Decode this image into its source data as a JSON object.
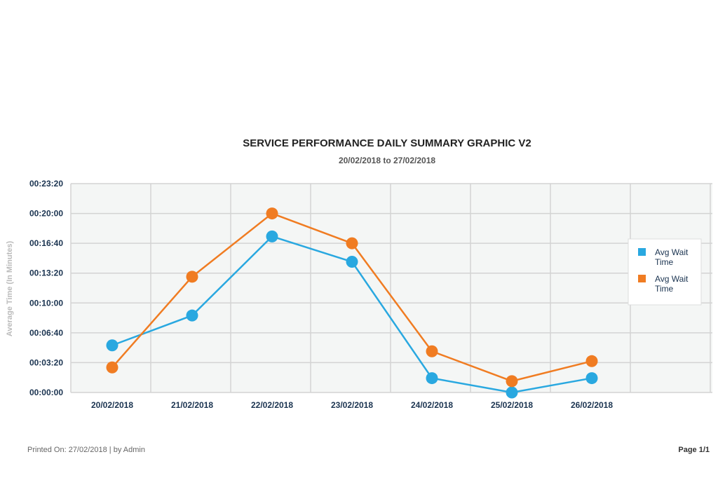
{
  "chart_data": {
    "type": "line",
    "title": "SERVICE PERFORMANCE DAILY SUMMARY GRAPHIC V2",
    "subtitle": "20/02/2018 to 27/02/2018",
    "ylabel": "Average Time (In Minutes)",
    "xlabel": "",
    "categories": [
      "20/02/2018",
      "21/02/2018",
      "22/02/2018",
      "23/02/2018",
      "24/02/2018",
      "25/02/2018",
      "26/02/2018"
    ],
    "y_unit": "seconds",
    "ylim": [
      0,
      1400
    ],
    "y_ticks": [
      0,
      200,
      400,
      600,
      800,
      1000,
      1200,
      1400
    ],
    "y_tick_labels": [
      "00:00:00",
      "00:03:20",
      "00:06:40",
      "00:10:00",
      "00:13:20",
      "00:16:40",
      "00:20:00",
      "00:23:20"
    ],
    "grid": true,
    "legend_position": "right",
    "series": [
      {
        "name": "Avg Wait Time",
        "color": "#29a8e0",
        "values": [
          316,
          516,
          1046,
          876,
          96,
          0,
          96
        ]
      },
      {
        "name": "Avg Wait Time",
        "color": "#f07c22",
        "values": [
          168,
          776,
          1200,
          1000,
          276,
          76,
          210
        ]
      }
    ]
  },
  "footer": {
    "printed": "Printed On: 27/02/2018 | by Admin",
    "page": "Page 1/1"
  },
  "colors": {
    "plot_background": "#f4f6f5",
    "grid": "#d3d3d3"
  }
}
